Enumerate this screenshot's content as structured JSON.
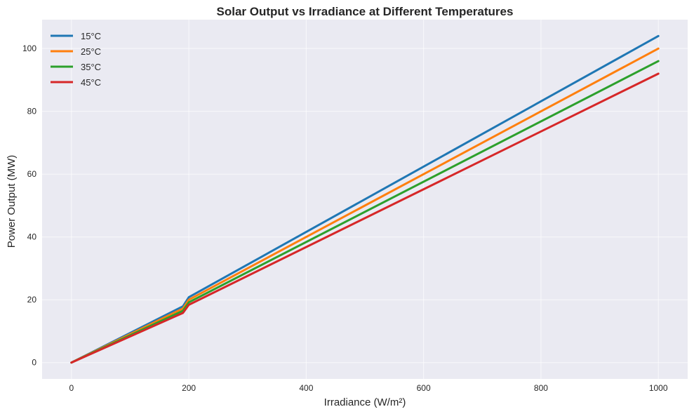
{
  "chart_data": {
    "type": "line",
    "title": "Solar Output vs Irradiance at Different Temperatures",
    "xlabel": "Irradiance (W/m²)",
    "ylabel": "Power Output (MW)",
    "xlim": [
      -50,
      1050
    ],
    "ylim": [
      -5.2,
      109.2
    ],
    "xticks": [
      0,
      200,
      400,
      600,
      800,
      1000
    ],
    "yticks": [
      0,
      20,
      40,
      60,
      80,
      100
    ],
    "grid": true,
    "legend_position": "top-left",
    "x": [
      0,
      190,
      200,
      1000
    ],
    "series": [
      {
        "name": "15°C",
        "color": "#1f77b4",
        "values": [
          0,
          17.9,
          20.8,
          104
        ]
      },
      {
        "name": "25°C",
        "color": "#ff7f0e",
        "values": [
          0,
          17.2,
          20.0,
          100
        ]
      },
      {
        "name": "35°C",
        "color": "#2ca02c",
        "values": [
          0,
          16.5,
          19.2,
          96
        ]
      },
      {
        "name": "45°C",
        "color": "#d62728",
        "values": [
          0,
          15.8,
          18.4,
          92
        ]
      }
    ]
  },
  "colors": {
    "plot_background": "#eaeaf2",
    "grid": "#ffffff",
    "text": "#262626"
  }
}
